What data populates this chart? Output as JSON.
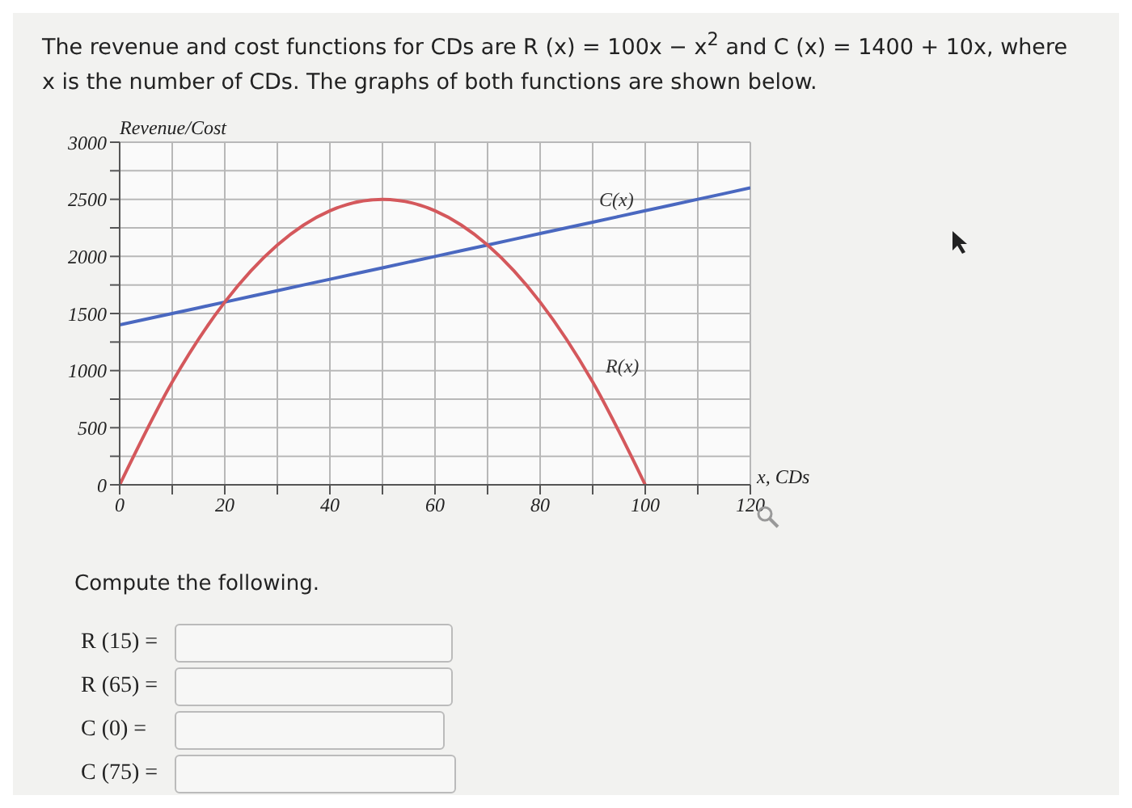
{
  "chart_data": {
    "type": "line",
    "title": "The revenue and cost functions for CDs are R (x) = 100x − x$^{2}$ and C (x) = 1400 + 10x, where x is the number of CDs. The graphs of both functions are shown below.",
    "xlabel": "x, CDs",
    "ylabel": "Revenue/Cost",
    "annotations": [
      "Compute the following.",
      "R (15) =",
      "R (65) =",
      "C (0) =",
      "C (75) ="
    ],
    "series": [
      {
        "name": "C(x)",
        "color": "#4a68c0",
        "x": [
          0,
          10,
          20,
          30,
          40,
          50,
          60,
          70,
          80,
          90,
          100,
          110,
          120
        ],
        "values": [
          1400,
          1500,
          1600,
          1700,
          1800,
          1900,
          2000,
          2100,
          2200,
          2300,
          2400,
          2500,
          2600
        ]
      },
      {
        "name": "R(x)",
        "color": "#d4585c",
        "x": [
          0,
          10,
          20,
          30,
          40,
          50,
          60,
          70,
          80,
          90,
          100
        ],
        "values": [
          0,
          900,
          1600,
          2100,
          2400,
          2500,
          2400,
          2100,
          1600,
          900,
          0
        ]
      }
    ],
    "xlim": [
      0,
      120
    ],
    "ylim": [
      0,
      3000
    ],
    "xticks": [
      0,
      {
        "value": 10,
        "label": null
      },
      20,
      {
        "value": 30,
        "label": null
      },
      40,
      {
        "value": 50,
        "label": null
      },
      60,
      {
        "value": 70,
        "label": null
      },
      80,
      {
        "value": 90,
        "label": null
      },
      100,
      {
        "value": 110,
        "label": null
      },
      120
    ],
    "yticks": [
      0,
      {
        "value": 250,
        "label": null
      },
      500,
      {
        "value": 750,
        "label": null
      },
      1000,
      {
        "value": 1250,
        "label": null
      },
      1500,
      {
        "value": 1750,
        "label": null
      },
      2000,
      {
        "value": 2250,
        "label": null
      },
      2500,
      {
        "value": 2750,
        "label": null
      },
      3000
    ],
    "grid": true,
    "legend": false,
    "marker": "none",
    "line_style": "solid"
  }
}
